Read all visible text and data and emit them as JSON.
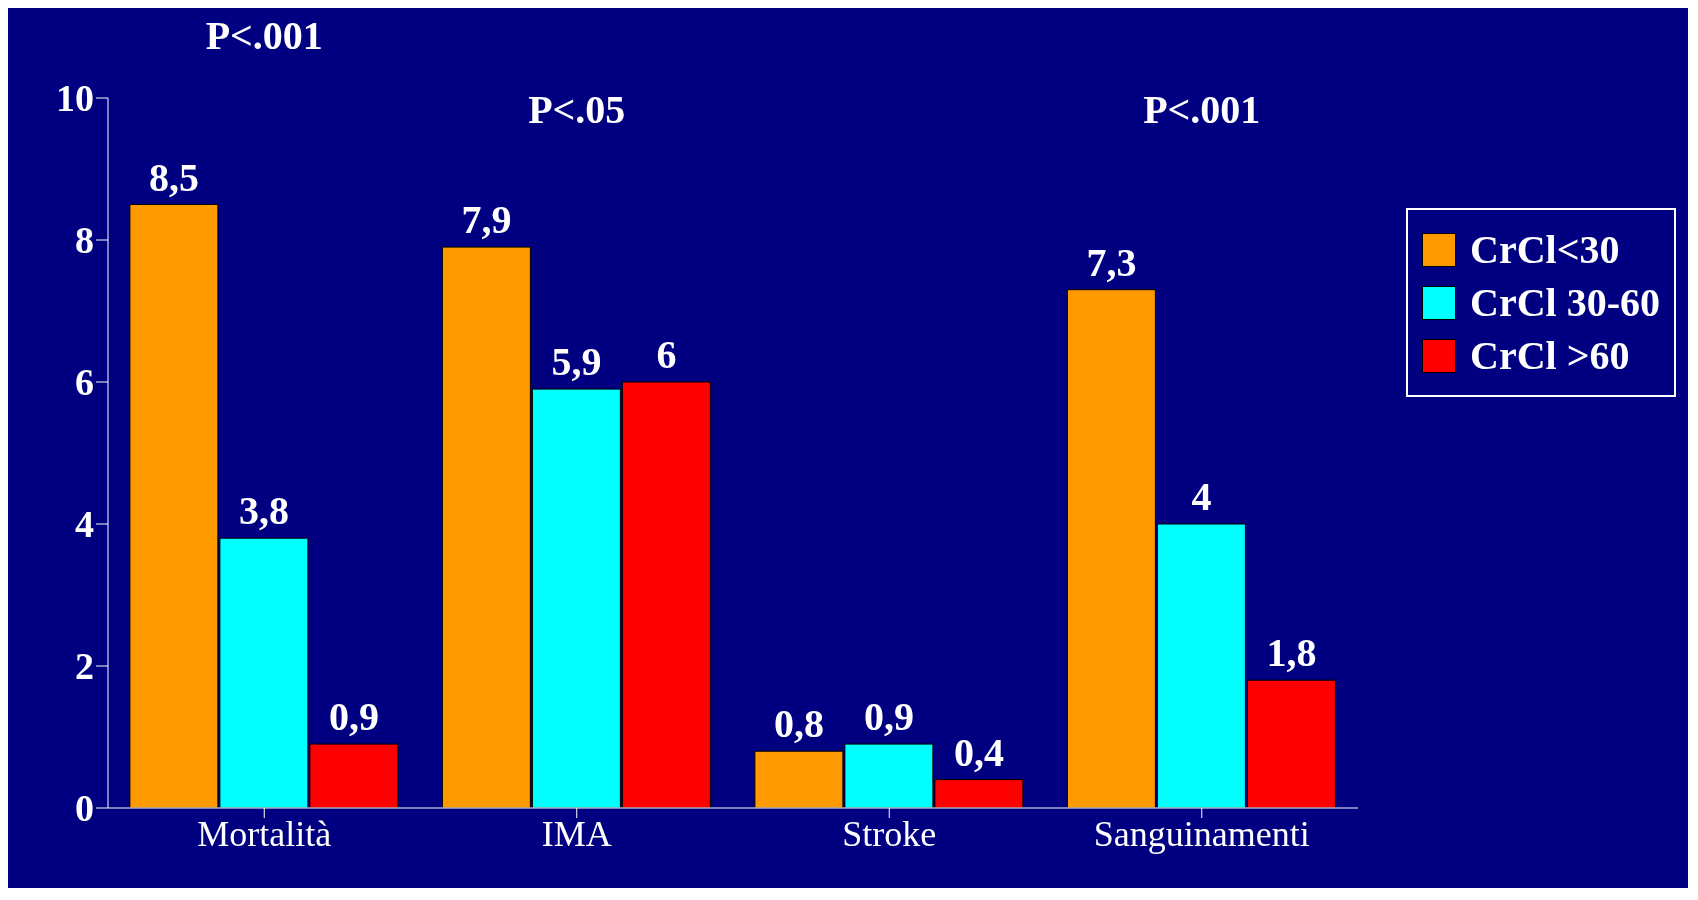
{
  "chart_data": {
    "type": "bar",
    "categories": [
      "Mortalità",
      "IMA",
      "Stroke",
      "Sanguinamenti"
    ],
    "series": [
      {
        "name": "CrCl<30",
        "color": "#ff9900",
        "values": [
          8.5,
          7.9,
          0.8,
          7.3
        ],
        "value_labels": [
          "8,5",
          "7,9",
          "0,8",
          "7,3"
        ]
      },
      {
        "name": "CrCl 30-60",
        "color": "#00ffff",
        "values": [
          3.8,
          5.9,
          0.9,
          4
        ],
        "value_labels": [
          "3,8",
          "5,9",
          "0,9",
          "4"
        ]
      },
      {
        "name": "CrCl >60",
        "color": "#ff0000",
        "values": [
          0.9,
          6,
          0.4,
          1.8
        ],
        "value_labels": [
          "0,9",
          "6",
          "0,4",
          "1,8"
        ]
      }
    ],
    "ylim": [
      0,
      10
    ],
    "yticks": [
      0,
      2,
      4,
      6,
      8,
      10
    ],
    "grid": false,
    "legend": "top right",
    "annotations": [
      "P<.001",
      "P<.05",
      "P<.001"
    ]
  }
}
